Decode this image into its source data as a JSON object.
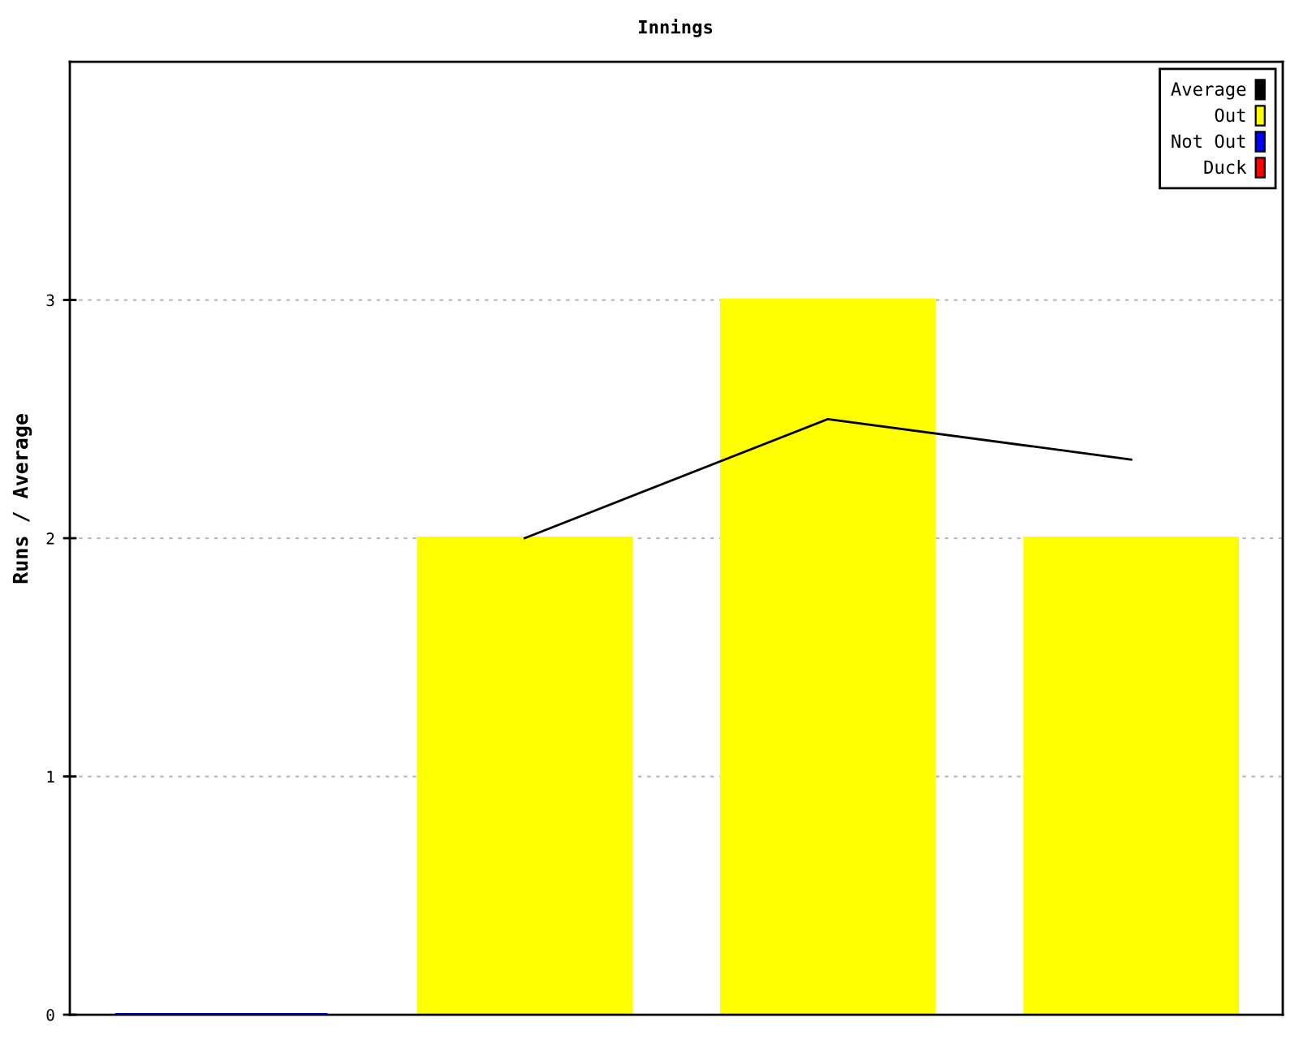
{
  "chart_data": {
    "type": "bar",
    "title": "Innings",
    "ylabel": "Runs / Average",
    "categories": [
      null,
      null,
      null,
      null
    ],
    "series": [
      {
        "name": "Average",
        "type": "line",
        "color": "#000000",
        "values": [
          null,
          2,
          2.5,
          2.33
        ]
      },
      {
        "name": "Out",
        "color": "#ffff00",
        "values": [
          null,
          2,
          3,
          2
        ]
      },
      {
        "name": "Not Out",
        "color": "#0000ff",
        "values": [
          0,
          null,
          null,
          null
        ]
      },
      {
        "name": "Duck",
        "color": "#ff0000",
        "values": [
          null,
          null,
          null,
          null
        ]
      }
    ],
    "stacked": true,
    "ylim": [
      0,
      4
    ],
    "yticks": [
      0,
      1,
      2,
      3
    ],
    "grid": "y",
    "legend": "top right",
    "tick_labels": "y"
  }
}
